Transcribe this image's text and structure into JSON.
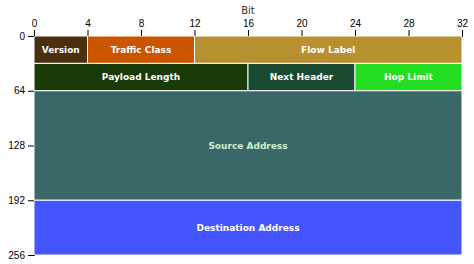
{
  "chart_data": {
    "type": "packet",
    "xlabel": "Bit",
    "xlim": [
      0,
      32
    ],
    "xticks": [
      0,
      4,
      8,
      12,
      16,
      20,
      24,
      28,
      32
    ],
    "ylim": [
      0,
      256
    ],
    "yticks": [
      0,
      64,
      128,
      192,
      256
    ],
    "rows": [
      {
        "y_start": 0,
        "y_end": 32,
        "segments": [
          {
            "label": "Version",
            "x_start": 0,
            "x_end": 4,
            "color": "#4a3010",
            "text_color": "#ffffff"
          },
          {
            "label": "Traffic Class",
            "x_start": 4,
            "x_end": 12,
            "color": "#cc5500",
            "text_color": "#ffffff"
          },
          {
            "label": "Flow Label",
            "x_start": 12,
            "x_end": 32,
            "color": "#b89030",
            "text_color": "#ffffff"
          }
        ]
      },
      {
        "y_start": 32,
        "y_end": 64,
        "segments": [
          {
            "label": "Payload Length",
            "x_start": 0,
            "x_end": 16,
            "color": "#1a3a08",
            "text_color": "#ffffff"
          },
          {
            "label": "Next Header",
            "x_start": 16,
            "x_end": 24,
            "color": "#1a4a30",
            "text_color": "#ffffff"
          },
          {
            "label": "Hop Limit",
            "x_start": 24,
            "x_end": 32,
            "color": "#22dd22",
            "text_color": "#ffffff"
          }
        ]
      },
      {
        "y_start": 64,
        "y_end": 192,
        "segments": [
          {
            "label": "Source Address",
            "x_start": 0,
            "x_end": 32,
            "color": "#3a6868",
            "text_color": "#cceecc"
          }
        ]
      },
      {
        "y_start": 192,
        "y_end": 256,
        "segments": [
          {
            "label": "Destination Address",
            "x_start": 0,
            "x_end": 32,
            "color": "#4455ff",
            "text_color": "#ffffff"
          }
        ]
      }
    ]
  }
}
